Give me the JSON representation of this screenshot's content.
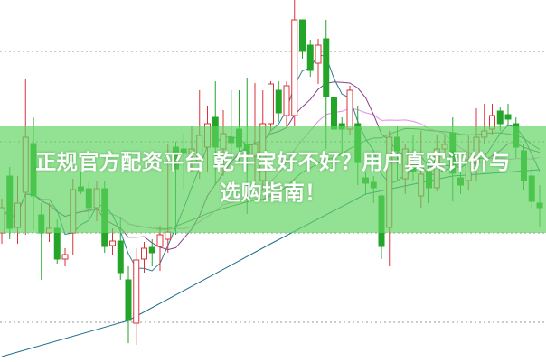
{
  "banner": {
    "line1": "正规官方配资平台 乾牛宝好不好？用户真实评价与",
    "line2": "选购指南！",
    "color": "#60d460"
  },
  "chart_data": {
    "type": "candlestick",
    "title": "",
    "xlabel": "",
    "ylabel": "",
    "ylim": [
      0,
      400
    ],
    "grid": true,
    "grid_levels": [
      43,
      142,
      243,
      343
    ],
    "colors": {
      "up": "#d9323a",
      "down": "#23a52a",
      "ma_short": "#2f7f8f",
      "ma_mid": "#8a3f8a",
      "ma_20": "#e58be5",
      "ma_trend": "#4f8f4f",
      "ma_long": "#1f6f8f"
    },
    "candles_ohlc": [
      [
        142,
        180,
        130,
        170
      ],
      [
        205,
        215,
        135,
        147
      ],
      [
        148,
        205,
        130,
        175
      ],
      [
        187,
        313,
        140,
        248
      ],
      [
        241,
        270,
        145,
        183
      ],
      [
        162,
        175,
        90,
        142
      ],
      [
        142,
        175,
        132,
        147
      ],
      [
        147,
        157,
        108,
        113
      ],
      [
        113,
        125,
        105,
        118
      ],
      [
        142,
        202,
        118,
        190
      ],
      [
        193,
        210,
        185,
        188
      ],
      [
        191,
        198,
        157,
        170
      ],
      [
        170,
        200,
        155,
        191
      ],
      [
        191,
        200,
        120,
        127
      ],
      [
        128,
        147,
        118,
        133
      ],
      [
        133,
        160,
        90,
        98
      ],
      [
        90,
        105,
        20,
        45
      ],
      [
        42,
        125,
        18,
        112
      ],
      [
        113,
        132,
        98,
        125
      ],
      [
        126,
        135,
        105,
        120
      ],
      [
        127,
        150,
        100,
        140
      ],
      [
        135,
        240,
        120,
        143
      ],
      [
        237,
        243,
        140,
        213
      ],
      [
        235,
        252,
        190,
        230
      ],
      [
        230,
        260,
        210,
        235
      ],
      [
        220,
        300,
        202,
        250
      ],
      [
        237,
        283,
        210,
        263
      ],
      [
        270,
        310,
        195,
        237
      ],
      [
        235,
        278,
        205,
        252
      ],
      [
        248,
        300,
        218,
        242
      ],
      [
        257,
        300,
        218,
        237
      ],
      [
        240,
        314,
        163,
        228
      ],
      [
        227,
        308,
        200,
        240
      ],
      [
        200,
        300,
        190,
        263
      ],
      [
        263,
        310,
        255,
        307
      ],
      [
        300,
        310,
        265,
        275
      ],
      [
        272,
        310,
        260,
        305
      ],
      [
        272,
        400,
        260,
        378
      ],
      [
        378,
        378,
        335,
        343
      ],
      [
        350,
        356,
        315,
        322
      ],
      [
        330,
        357,
        307,
        350
      ],
      [
        357,
        378,
        235,
        293
      ],
      [
        292,
        300,
        235,
        257
      ],
      [
        263,
        270,
        228,
        257
      ],
      [
        257,
        305,
        250,
        300
      ],
      [
        263,
        283,
        195,
        220
      ],
      [
        203,
        210,
        185,
        197
      ],
      [
        198,
        205,
        175,
        192
      ],
      [
        183,
        185,
        113,
        127
      ],
      [
        148,
        255,
        105,
        248
      ],
      [
        248,
        260,
        200,
        233
      ],
      [
        202,
        240,
        185,
        235
      ],
      [
        217,
        250,
        200,
        210
      ],
      [
        183,
        255,
        170,
        207
      ],
      [
        210,
        225,
        175,
        192
      ],
      [
        192,
        250,
        188,
        235
      ],
      [
        235,
        250,
        225,
        240
      ],
      [
        253,
        270,
        177,
        208
      ],
      [
        203,
        215,
        185,
        195
      ],
      [
        200,
        250,
        190,
        223
      ],
      [
        220,
        280,
        200,
        248
      ],
      [
        248,
        285,
        240,
        255
      ],
      [
        257,
        285,
        250,
        272
      ],
      [
        277,
        282,
        255,
        263
      ],
      [
        273,
        285,
        260,
        268
      ],
      [
        263,
        270,
        225,
        237
      ],
      [
        233,
        240,
        190,
        200
      ],
      [
        205,
        215,
        170,
        177
      ],
      [
        175,
        195,
        148,
        170
      ]
    ],
    "ma_long": [
      [
        0,
        5
      ],
      [
        16,
        45
      ],
      [
        34,
        130
      ],
      [
        46,
        185
      ],
      [
        57,
        205
      ],
      [
        68,
        212
      ]
    ]
  }
}
